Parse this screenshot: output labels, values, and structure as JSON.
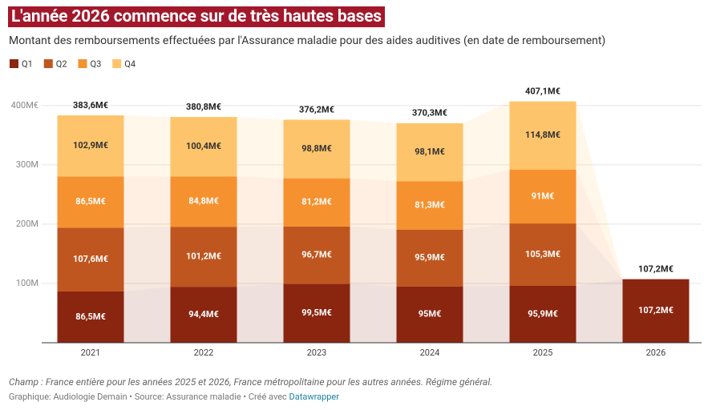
{
  "chart_data": {
    "type": "stacked_bar",
    "title": "L'année 2026 commence sur de très hautes bases",
    "subtitle": "Montant des remboursements effectuées par l'Assurance maladie pour des aides auditives (en date de remboursement)",
    "categories": [
      "2021",
      "2022",
      "2023",
      "2024",
      "2025",
      "2026"
    ],
    "series": [
      {
        "name": "Q1",
        "color": "#8a2510",
        "values": [
          86.5,
          94.4,
          99.5,
          95,
          95.9,
          107.2
        ],
        "value_labels": [
          "86,5M€",
          "94,4M€",
          "99,5M€",
          "95M€",
          "95,9M€",
          "107,2M€"
        ]
      },
      {
        "name": "Q2",
        "color": "#c0561f",
        "values": [
          107.6,
          101.2,
          96.7,
          95.9,
          105.3,
          null
        ],
        "value_labels": [
          "107,6M€",
          "101,2M€",
          "96,7M€",
          "95,9M€",
          "105,3M€",
          null
        ]
      },
      {
        "name": "Q3",
        "color": "#f6912f",
        "values": [
          86.5,
          84.8,
          81.2,
          81.3,
          91,
          null
        ],
        "value_labels": [
          "86,5M€",
          "84,8M€",
          "81,2M€",
          "81,3M€",
          "91M€",
          null
        ]
      },
      {
        "name": "Q4",
        "color": "#fdc46b",
        "values": [
          102.9,
          100.4,
          98.8,
          98.1,
          114.8,
          null
        ],
        "value_labels": [
          "102,9M€",
          "100,4M€",
          "98,8M€",
          "98,1M€",
          "114,8M€",
          null
        ]
      }
    ],
    "totals": {
      "values": [
        383.6,
        380.8,
        376.2,
        370.3,
        407.1,
        107.2
      ],
      "value_labels": [
        "383,6M€",
        "380,8M€",
        "376,2M€",
        "370,3M€",
        "407,1M€",
        "107,2M€"
      ]
    },
    "ylim": [
      0,
      416
    ],
    "yticks": [
      {
        "value": 100,
        "label": "100M"
      },
      {
        "value": 200,
        "label": "200M"
      },
      {
        "value": 300,
        "label": "300M"
      },
      {
        "value": 400,
        "label": "400M€"
      }
    ],
    "grid": true,
    "legend": "top-left",
    "note": "Champ : France entière pour les années 2025 et 2026, France métropolitaine pour les autres années. Régime général.",
    "byline": "Graphique: Audiologie Demain • Source: Assurance maladie • Créé avec",
    "byline_link": "Datawrapper"
  }
}
